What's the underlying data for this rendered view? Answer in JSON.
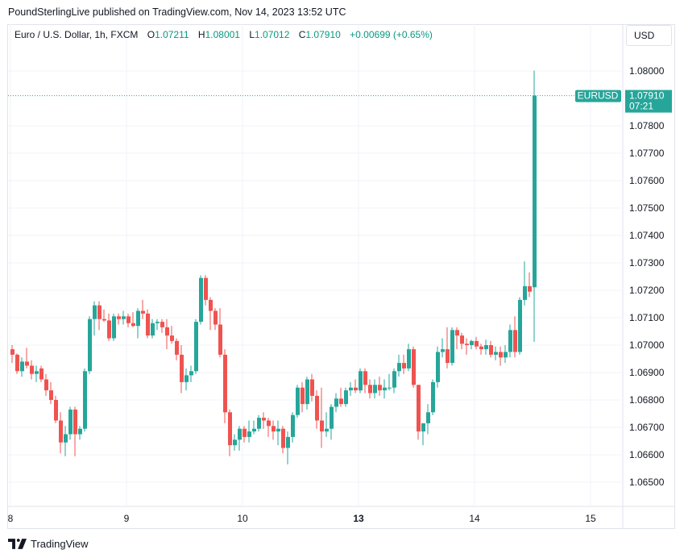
{
  "header": {
    "publisher_line": "PoundSterlingLive published on TradingView.com, Nov 14, 2023 13:52 UTC"
  },
  "legend": {
    "symbol": "Euro / U.S. Dollar, 1h, FXCM",
    "open_label": "O",
    "open": "1.07211",
    "high_label": "H",
    "high": "1.08001",
    "low_label": "L",
    "low": "1.07012",
    "close_label": "C",
    "close": "1.07910",
    "change": "+0.00699 (+0.65%)"
  },
  "currency_button": "USD",
  "price_tag": {
    "symbol": "EURUSD",
    "price": "1.07910",
    "countdown": "07:21"
  },
  "brand": {
    "name": "TradingView",
    "icon": "tradingview-logo-icon"
  },
  "colors": {
    "up": "#26a69a",
    "down": "#ef5350",
    "last_price_line": "#26a69a"
  },
  "chart_data": {
    "type": "candlestick",
    "title": "Euro / U.S. Dollar, 1h, FXCM",
    "ylim": [
      1.0645,
      1.0815
    ],
    "yticks": [
      "1.08000",
      "1.07800",
      "1.07700",
      "1.07600",
      "1.07500",
      "1.07400",
      "1.07300",
      "1.07200",
      "1.07100",
      "1.07000",
      "1.06900",
      "1.06800",
      "1.06700",
      "1.06600",
      "1.06500"
    ],
    "xticks": [
      {
        "label": "8",
        "x": 0,
        "bold": false
      },
      {
        "label": "9",
        "x": 24,
        "bold": false
      },
      {
        "label": "10",
        "x": 48,
        "bold": false
      },
      {
        "label": "13",
        "x": 72,
        "bold": true
      },
      {
        "label": "14",
        "x": 96,
        "bold": false
      },
      {
        "label": "15",
        "x": 120,
        "bold": false
      }
    ],
    "grid": true,
    "last_price": 1.0791,
    "candles": [
      [
        1.06985,
        1.07,
        1.06935,
        1.06965
      ],
      [
        1.06965,
        1.0697,
        1.06895,
        1.06905
      ],
      [
        1.06905,
        1.06955,
        1.06885,
        1.0694
      ],
      [
        1.0694,
        1.0699,
        1.06915,
        1.06925
      ],
      [
        1.06925,
        1.06945,
        1.06875,
        1.06895
      ],
      [
        1.06895,
        1.06925,
        1.06865,
        1.06905
      ],
      [
        1.06915,
        1.06925,
        1.06865,
        1.06875
      ],
      [
        1.06875,
        1.06895,
        1.06815,
        1.06835
      ],
      [
        1.06835,
        1.06865,
        1.06785,
        1.068
      ],
      [
        1.068,
        1.06815,
        1.06715,
        1.06725
      ],
      [
        1.06725,
        1.06755,
        1.06605,
        1.06645
      ],
      [
        1.06645,
        1.06705,
        1.06595,
        1.06675
      ],
      [
        1.06675,
        1.06775,
        1.06655,
        1.06765
      ],
      [
        1.06765,
        1.06775,
        1.06595,
        1.06675
      ],
      [
        1.06675,
        1.06705,
        1.06655,
        1.06695
      ],
      [
        1.06695,
        1.06915,
        1.06685,
        1.06905
      ],
      [
        1.06905,
        1.07105,
        1.06895,
        1.07095
      ],
      [
        1.07095,
        1.0716,
        1.07035,
        1.07145
      ],
      [
        1.07145,
        1.0716,
        1.07055,
        1.07095
      ],
      [
        1.07095,
        1.0713,
        1.07085,
        1.0709
      ],
      [
        1.0709,
        1.07115,
        1.07015,
        1.07025
      ],
      [
        1.07025,
        1.07115,
        1.07015,
        1.07105
      ],
      [
        1.07105,
        1.07115,
        1.07075,
        1.07095
      ],
      [
        1.07095,
        1.07125,
        1.07075,
        1.07105
      ],
      [
        1.07105,
        1.07115,
        1.07065,
        1.0708
      ],
      [
        1.0708,
        1.0712,
        1.07065,
        1.0707
      ],
      [
        1.0707,
        1.07135,
        1.07025,
        1.07125
      ],
      [
        1.07125,
        1.07165,
        1.07095,
        1.07115
      ],
      [
        1.07115,
        1.0713,
        1.07025,
        1.07035
      ],
      [
        1.07035,
        1.07095,
        1.07025,
        1.0708
      ],
      [
        1.0708,
        1.07095,
        1.07055,
        1.07085
      ],
      [
        1.07085,
        1.07095,
        1.07045,
        1.07065
      ],
      [
        1.07065,
        1.07095,
        1.06985,
        1.07035
      ],
      [
        1.07035,
        1.0707,
        1.07005,
        1.07015
      ],
      [
        1.07015,
        1.07025,
        1.06945,
        1.06965
      ],
      [
        1.06965,
        1.07,
        1.06825,
        1.06865
      ],
      [
        1.06865,
        1.06915,
        1.06835,
        1.0689
      ],
      [
        1.0689,
        1.06925,
        1.06865,
        1.06905
      ],
      [
        1.06905,
        1.07095,
        1.06895,
        1.07085
      ],
      [
        1.07085,
        1.07255,
        1.07075,
        1.07245
      ],
      [
        1.07245,
        1.07255,
        1.07145,
        1.07165
      ],
      [
        1.07165,
        1.07175,
        1.07055,
        1.07125
      ],
      [
        1.07125,
        1.07135,
        1.07055,
        1.07075
      ],
      [
        1.07075,
        1.07135,
        1.06955,
        1.06965
      ],
      [
        1.06965,
        1.06985,
        1.06715,
        1.06755
      ],
      [
        1.06755,
        1.06765,
        1.06595,
        1.06635
      ],
      [
        1.06635,
        1.06675,
        1.06615,
        1.06655
      ],
      [
        1.06655,
        1.06705,
        1.06615,
        1.06695
      ],
      [
        1.06695,
        1.06705,
        1.06645,
        1.06665
      ],
      [
        1.06665,
        1.06725,
        1.06645,
        1.06685
      ],
      [
        1.06685,
        1.06725,
        1.06675,
        1.06695
      ],
      [
        1.06695,
        1.06745,
        1.06685,
        1.06735
      ],
      [
        1.06735,
        1.06755,
        1.06695,
        1.06725
      ],
      [
        1.06725,
        1.06735,
        1.06665,
        1.06705
      ],
      [
        1.06705,
        1.06725,
        1.06655,
        1.06685
      ],
      [
        1.06685,
        1.06725,
        1.06635,
        1.06695
      ],
      [
        1.06695,
        1.06705,
        1.06605,
        1.06625
      ],
      [
        1.06625,
        1.06685,
        1.06565,
        1.06665
      ],
      [
        1.06665,
        1.06755,
        1.06645,
        1.06745
      ],
      [
        1.06745,
        1.06855,
        1.06735,
        1.06845
      ],
      [
        1.06845,
        1.06865,
        1.06755,
        1.06785
      ],
      [
        1.06785,
        1.06885,
        1.06765,
        1.06875
      ],
      [
        1.06875,
        1.06895,
        1.06795,
        1.06815
      ],
      [
        1.06815,
        1.06835,
        1.06695,
        1.06725
      ],
      [
        1.06725,
        1.06845,
        1.06625,
        1.06685
      ],
      [
        1.06685,
        1.06755,
        1.06665,
        1.06695
      ],
      [
        1.06695,
        1.06785,
        1.06655,
        1.06775
      ],
      [
        1.06775,
        1.06825,
        1.06755,
        1.06805
      ],
      [
        1.06805,
        1.06845,
        1.06775,
        1.06785
      ],
      [
        1.06785,
        1.06845,
        1.06775,
        1.06835
      ],
      [
        1.06835,
        1.06865,
        1.06815,
        1.06845
      ],
      [
        1.06845,
        1.06875,
        1.06825,
        1.06835
      ],
      [
        1.06835,
        1.06915,
        1.06825,
        1.06905
      ],
      [
        1.06905,
        1.06915,
        1.06825,
        1.06855
      ],
      [
        1.06855,
        1.06875,
        1.06805,
        1.06825
      ],
      [
        1.06825,
        1.06875,
        1.06805,
        1.06855
      ],
      [
        1.06855,
        1.06885,
        1.06815,
        1.06835
      ],
      [
        1.06835,
        1.06875,
        1.06805,
        1.06845
      ],
      [
        1.06845,
        1.06895,
        1.06835,
        1.06845
      ],
      [
        1.06845,
        1.06915,
        1.06825,
        1.06905
      ],
      [
        1.06905,
        1.06965,
        1.06885,
        1.06935
      ],
      [
        1.06935,
        1.06965,
        1.06895,
        1.06915
      ],
      [
        1.06915,
        1.07005,
        1.06905,
        1.06985
      ],
      [
        1.06985,
        1.06995,
        1.06845,
        1.06855
      ],
      [
        1.06855,
        1.06855,
        1.06655,
        1.06685
      ],
      [
        1.06685,
        1.06715,
        1.06635,
        1.06715
      ],
      [
        1.06715,
        1.06785,
        1.06675,
        1.06755
      ],
      [
        1.06755,
        1.06875,
        1.06745,
        1.06865
      ],
      [
        1.06865,
        1.06995,
        1.06845,
        1.06975
      ],
      [
        1.06975,
        1.07025,
        1.06955,
        1.06985
      ],
      [
        1.06985,
        1.07065,
        1.06915,
        1.06935
      ],
      [
        1.06935,
        1.07065,
        1.06925,
        1.07055
      ],
      [
        1.07055,
        1.07065,
        1.06985,
        1.07035
      ],
      [
        1.07035,
        1.07045,
        1.06985,
        1.07005
      ],
      [
        1.07005,
        1.07025,
        1.06965,
        1.07
      ],
      [
        1.07,
        1.0702,
        1.06985,
        1.07015
      ],
      [
        1.07015,
        1.0703,
        1.06985,
        1.06995
      ],
      [
        1.06995,
        1.07005,
        1.06965,
        1.06985
      ],
      [
        1.06985,
        1.0702,
        1.06965,
        1.07
      ],
      [
        1.07,
        1.07015,
        1.06955,
        1.06965
      ],
      [
        1.06965,
        1.06995,
        1.06945,
        1.06975
      ],
      [
        1.06975,
        1.06995,
        1.06925,
        1.06955
      ],
      [
        1.06955,
        1.07,
        1.06935,
        1.06975
      ],
      [
        1.06975,
        1.07075,
        1.06955,
        1.07055
      ],
      [
        1.07055,
        1.07105,
        1.06955,
        1.06975
      ],
      [
        1.06975,
        1.07175,
        1.06965,
        1.07165
      ],
      [
        1.07165,
        1.07305,
        1.07145,
        1.07215
      ],
      [
        1.07215,
        1.07265,
        1.07175,
        1.07195
      ],
      [
        1.07211,
        1.08001,
        1.07012,
        1.0791
      ]
    ]
  }
}
